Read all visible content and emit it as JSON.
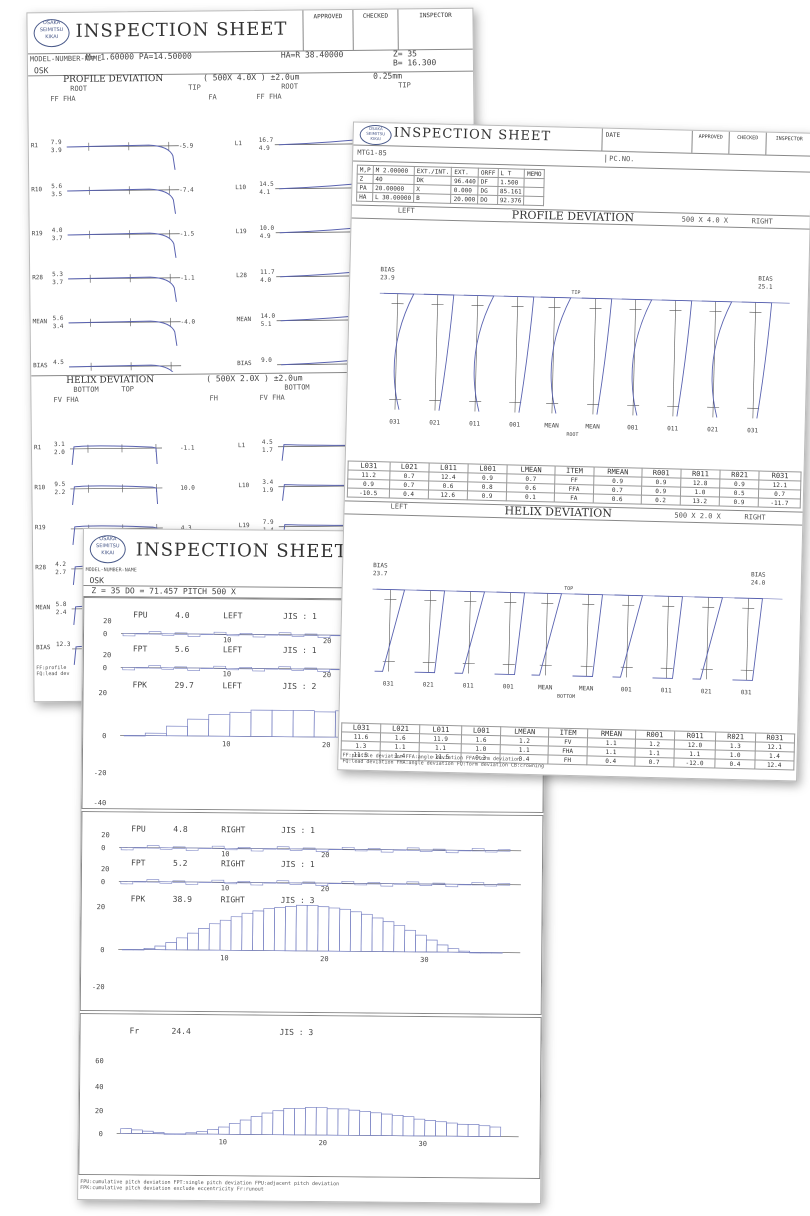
{
  "colors": {
    "curve": "#5a63b0",
    "grid": "#555555",
    "bars": "#7b84c4"
  },
  "sheet1": {
    "title": "INSPECTION SHEET",
    "signoff": [
      "APPROVED",
      "CHECKED",
      "INSPECTOR"
    ],
    "model": "MODEL-NUMBER-NAME",
    "params": "M= 1.60000  PA=14.50000",
    "ha": "HA=R 38.40000",
    "z": "Z= 35",
    "b": "B= 16.300",
    "osk": "OSK",
    "profile_title": "PROFILE DEVIATION",
    "profile_scale": "( 500X 4.0X ) ±2.0um",
    "profile_scale2": "0.25mm",
    "root": "ROOT",
    "tip": "TIP",
    "ff_fha": "FF FHA",
    "fa": "FA",
    "helix_title": "HELIX DEVIATION",
    "helix_scale": "( 500X 2.0X ) ±2.0um",
    "bottom": "BOTTOM",
    "top": "TOP",
    "fv_fha": "FV FHA",
    "fh": "FH",
    "profile_rows": [
      {
        "label": "R1",
        "val": "7.9\n3.9",
        "right": "-5.9"
      },
      {
        "label": "R10",
        "val": "5.6\n3.5",
        "right": "-7.4"
      },
      {
        "label": "R19",
        "val": "4.0\n3.7",
        "right": "-1.5"
      },
      {
        "label": "R28",
        "val": "5.3\n3.7",
        "right": "-1.1"
      },
      {
        "label": "MEAN",
        "val": "5.6\n3.4",
        "right": "-4.0"
      },
      {
        "label": "BIAS",
        "val": "4.5",
        "right": ""
      }
    ],
    "profile_rows_right": [
      {
        "label": "L1",
        "val": "16.7\n4.9"
      },
      {
        "label": "L10",
        "val": "14.5\n4.1"
      },
      {
        "label": "L19",
        "val": "10.0\n4.9"
      },
      {
        "label": "L28",
        "val": "11.7\n4.0"
      },
      {
        "label": "MEAN",
        "val": "14.0\n5.1"
      },
      {
        "label": "BIAS",
        "val": "9.0"
      }
    ],
    "helix_rows": [
      {
        "label": "R1",
        "val": "3.1\n2.0",
        "right": "-1.1"
      },
      {
        "label": "R10",
        "val": "9.5\n2.2",
        "right": "10.0"
      },
      {
        "label": "R19",
        "val": "",
        "right": "4.3"
      },
      {
        "label": "R28",
        "val": "4.2\n2.7",
        "right": ""
      },
      {
        "label": "MEAN",
        "val": "5.8\n2.4",
        "right": ""
      },
      {
        "label": "BIAS",
        "val": "12.3",
        "right": ""
      }
    ],
    "helix_rows_right": [
      {
        "label": "L1",
        "val": "4.5\n1.7"
      },
      {
        "label": "L10",
        "val": "3.4\n1.9"
      },
      {
        "label": "L19",
        "val": "7.9\n1.4"
      }
    ],
    "footer": "FF:profile\nFQ:lead dev"
  },
  "sheet2": {
    "title": "INSPECTION SHEET",
    "date": "DATE",
    "pcno": "PC.NO.",
    "signoff": [
      "APPROVED",
      "CHECKED",
      "INSPECTOR"
    ],
    "model": "MTG1-85",
    "params": [
      [
        "M,P",
        "M 2.00000",
        "EXT./INT.",
        "EXT.",
        "ORFF",
        "L  T",
        "MEMO"
      ],
      [
        "Z",
        "40",
        "DK",
        "96.440",
        "DF",
        "1.500",
        ""
      ],
      [
        "PA",
        "20.00000",
        "X",
        "0.000",
        "DG",
        "85.161",
        ""
      ],
      [
        "HA",
        "L 30.00000",
        "B",
        "20.000",
        "DO",
        "92.376",
        ""
      ]
    ],
    "profile_bar": {
      "left": "LEFT",
      "title": "PROFILE DEVIATION",
      "scale": "500 X 4.0 X",
      "right": "RIGHT"
    },
    "helix_bar": {
      "left": "LEFT",
      "title": "HELIX DEVIATION",
      "scale": "500 X 2.0 X",
      "right": "RIGHT"
    },
    "bias_left_profile": "BIAS\n23.9",
    "bias_right_profile": "BIAS\n25.1",
    "bias_left_helix": "BIAS\n23.7",
    "bias_right_helix": "BIAS\n24.0",
    "tooth_labels": [
      "031",
      "021",
      "011",
      "001",
      "MEAN",
      "MEAN",
      "001",
      "011",
      "021",
      "031"
    ],
    "root": "ROOT",
    "tip": "TIP",
    "bottom": "BOTTOM",
    "top": "TOP",
    "profile_table": {
      "header": [
        "L031",
        "L021",
        "L011",
        "L001",
        "LMEAN",
        "ITEM",
        "RMEAN",
        "R001",
        "R011",
        "R021",
        "R031"
      ],
      "rows": [
        [
          "11.2",
          "0.7",
          "12.4",
          "0.9",
          "0.7",
          "FF",
          "0.9",
          "0.9",
          "12.8",
          "0.9",
          "12.1"
        ],
        [
          "0.9",
          "0.7",
          "0.6",
          "0.8",
          "0.6",
          "FFA",
          "0.7",
          "0.9",
          "1.0",
          "0.5",
          "0.7"
        ],
        [
          "-10.5",
          "0.4",
          "12.6",
          "0.9",
          "0.1",
          "FA",
          "0.6",
          "0.2",
          "13.2",
          "0.9",
          "-11.7"
        ]
      ]
    },
    "helix_table": {
      "header": [
        "L031",
        "L021",
        "L011",
        "L001",
        "LMEAN",
        "ITEM",
        "RMEAN",
        "R001",
        "R011",
        "R021",
        "R031"
      ],
      "rows": [
        [
          "11.6",
          "1.6",
          "11.9",
          "1.6",
          "1.2",
          "FV",
          "1.1",
          "1.2",
          "12.0",
          "1.3",
          "12.1"
        ],
        [
          "1.3",
          "1.1",
          "1.1",
          "1.0",
          "1.1",
          "FHA",
          "1.1",
          "1.1",
          "1.1",
          "1.0",
          "1.4"
        ],
        [
          "11.5",
          "1.4",
          "-11.5",
          "0.3",
          "0.4",
          "FH",
          "0.4",
          "0.7",
          "-12.0",
          "0.4",
          "12.4"
        ]
      ]
    },
    "footer": "FF:profile deviation FFA:angle deviation FFA:form deviation\nFQ:lead deviation FHA:angle deviation FQ:form deviation CB:crowning"
  },
  "sheet3": {
    "title": "INSPECTION SHEET",
    "model": "MODEL-NUMBER-NAME",
    "osk": "OSK",
    "params": "Z = 35  DO = 71.457  PITCH 500 X",
    "panels": [
      {
        "label": "FPU",
        "value": "4.0",
        "side": "LEFT",
        "jis": "JIS : 1"
      },
      {
        "label": "FPT",
        "value": "5.6",
        "side": "LEFT",
        "jis": "JIS : 1"
      },
      {
        "label": "FPK",
        "value": "29.7",
        "side": "LEFT",
        "jis": "JIS : 2"
      },
      {
        "label": "FPU",
        "value": "4.8",
        "side": "RIGHT",
        "jis": "JIS : 1"
      },
      {
        "label": "FPT",
        "value": "5.2",
        "side": "RIGHT",
        "jis": "JIS : 1"
      },
      {
        "label": "FPK",
        "value": "38.9",
        "side": "RIGHT",
        "jis": "JIS : 3"
      },
      {
        "label": "Fr",
        "value": "24.4",
        "side": "",
        "jis": "JIS : 3"
      }
    ],
    "axis_ticks": [
      "20",
      "0",
      "-20",
      "-40",
      "60",
      "40"
    ],
    "x_ticks": [
      "10",
      "20",
      "30"
    ],
    "footer": "FPU:cumulative pitch deviation FPT:single pitch deviation FPU:adjacent pitch deviation\nFPK:cumulative pitch deviation exclude eccentricity Fr:runout"
  },
  "chart_data": [
    {
      "type": "bar",
      "title": "FPK 29.7 LEFT JIS : 2",
      "x": [
        1,
        2,
        3,
        4,
        5,
        6,
        7,
        8,
        9,
        10,
        11,
        12,
        13,
        14,
        15,
        16,
        17,
        18
      ],
      "values": [
        0,
        2,
        8,
        14,
        18,
        20,
        22,
        22,
        22,
        21,
        22,
        23,
        22,
        22,
        21,
        20,
        19,
        18
      ]
    },
    {
      "type": "bar",
      "title": "FPK 38.9 RIGHT JIS : 3",
      "x": [
        1,
        2,
        3,
        4,
        5,
        6,
        7,
        8,
        9,
        10,
        11,
        12,
        13,
        14,
        15,
        16,
        17,
        18,
        19,
        20,
        21,
        22,
        23,
        24,
        25,
        26,
        27,
        28,
        29,
        30,
        31,
        32,
        33,
        34,
        35
      ],
      "values": [
        0,
        0,
        1,
        3,
        6,
        10,
        14,
        18,
        22,
        25,
        28,
        31,
        33,
        35,
        36,
        37,
        38,
        38,
        37,
        36,
        35,
        33,
        31,
        28,
        25,
        22,
        18,
        14,
        10,
        6,
        3,
        1,
        0,
        0,
        0
      ]
    },
    {
      "type": "bar",
      "title": "Fr 24.4 JIS : 3",
      "x": [
        1,
        2,
        3,
        4,
        5,
        6,
        7,
        8,
        9,
        10,
        11,
        12,
        13,
        14,
        15,
        16,
        17,
        18,
        19,
        20,
        21,
        22,
        23,
        24,
        25,
        26,
        27,
        28,
        29,
        30,
        31,
        32,
        33,
        34,
        35
      ],
      "values": [
        4,
        3,
        2,
        1,
        0,
        0,
        1,
        2,
        4,
        6,
        9,
        12,
        15,
        18,
        20,
        22,
        22,
        23,
        23,
        22,
        22,
        21,
        20,
        19,
        18,
        17,
        16,
        14,
        13,
        12,
        11,
        10,
        10,
        9,
        8
      ]
    }
  ]
}
